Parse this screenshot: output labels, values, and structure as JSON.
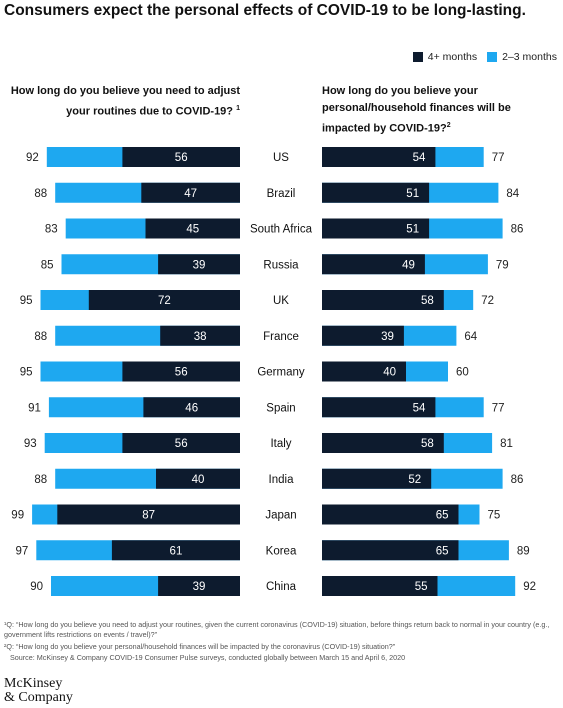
{
  "title": "Consumers expect the personal effects of COVID-19 to be long-lasting.",
  "legend": {
    "items": [
      {
        "label": "4+ months",
        "color": "#0d1b2e"
      },
      {
        "label": "2–3 months",
        "color": "#1ea8f0"
      }
    ]
  },
  "questions": {
    "left": "How long do you believe you need to adjust your routines due to COVID-19?",
    "left_sup": "1",
    "right": "How long do you believe your personal/household finances will be impacted by COVID-19?",
    "right_sup": "2"
  },
  "chart_data": [
    {
      "type": "bar",
      "orientation": "horizontal-stacked",
      "title": "How long do you believe you need to adjust your routines due to COVID-19?",
      "categories": [
        "US",
        "Brazil",
        "South Africa",
        "Russia",
        "UK",
        "France",
        "Germany",
        "Spain",
        "Italy",
        "India",
        "Japan",
        "Korea",
        "China"
      ],
      "series": [
        {
          "name": "4+ months",
          "values": [
            56,
            47,
            45,
            39,
            72,
            38,
            56,
            46,
            56,
            40,
            87,
            61,
            39
          ]
        },
        {
          "name": "2–3 months",
          "values": [
            36,
            41,
            38,
            46,
            23,
            50,
            39,
            45,
            37,
            48,
            12,
            36,
            51
          ]
        }
      ],
      "totals": [
        92,
        88,
        83,
        85,
        95,
        88,
        95,
        91,
        93,
        88,
        99,
        97,
        90
      ],
      "xlim": [
        0,
        100
      ]
    },
    {
      "type": "bar",
      "orientation": "horizontal-stacked",
      "title": "How long do you believe your personal/household finances will be impacted by COVID-19?",
      "categories": [
        "US",
        "Brazil",
        "South Africa",
        "Russia",
        "UK",
        "France",
        "Germany",
        "Spain",
        "Italy",
        "India",
        "Japan",
        "Korea",
        "China"
      ],
      "series": [
        {
          "name": "4+ months",
          "values": [
            54,
            51,
            51,
            49,
            58,
            39,
            40,
            54,
            58,
            52,
            65,
            65,
            55
          ]
        },
        {
          "name": "2–3 months",
          "values": [
            23,
            33,
            35,
            30,
            14,
            25,
            20,
            23,
            23,
            34,
            10,
            24,
            37
          ]
        }
      ],
      "totals": [
        77,
        84,
        86,
        79,
        72,
        64,
        60,
        77,
        81,
        86,
        75,
        89,
        92
      ],
      "xlim": [
        0,
        100
      ]
    }
  ],
  "footnotes": {
    "note1": "¹Q: “How long do you believe you need to adjust your routines, given the current coronavirus (COVID-19) situation, before things return back to normal in your country (e.g., government lifts restrictions on events / travel)?”",
    "note2": "²Q: “How long do you believe your personal/household finances will be impacted by the coronavirus (COVID-19) situation?”",
    "source": "Source: McKinsey & Company COVID-19 Consumer Pulse surveys, conducted globally between March 15 and April 6, 2020"
  },
  "logo": {
    "line1": "McKinsey",
    "line2": "& Company"
  }
}
